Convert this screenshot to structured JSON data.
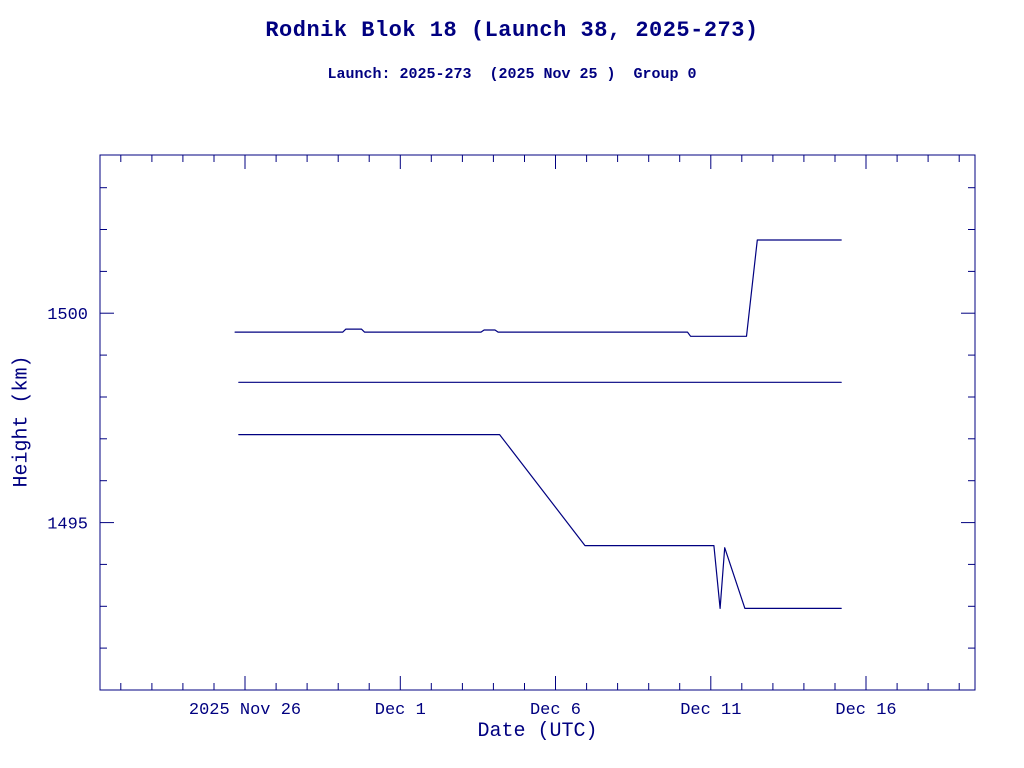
{
  "page": {
    "title": "Rodnik Blok 18 (Launch 38, 2025-273)",
    "subtitle": "Launch: 2025-273  (2025 Nov 25 )  Group 0"
  },
  "colors": {
    "ink": "#000080",
    "background": "#ffffff"
  },
  "chart_data": {
    "type": "line",
    "title": "Rodnik Blok 18 (Launch 38, 2025-273)",
    "subtitle": "Launch: 2025-273  (2025 Nov 25 )  Group 0",
    "xlabel": "Date (UTC)",
    "ylabel": "Height (km)",
    "x_unit": "days since 2025 Nov 25 00:00 UTC",
    "xlim": [
      -3.67,
      24.51
    ],
    "ylim": [
      1491.0,
      1503.78
    ],
    "grid": false,
    "legend": null,
    "line_color": "#000080",
    "x_major_ticks": [
      {
        "value": 1,
        "label": "2025 Nov 26"
      },
      {
        "value": 6,
        "label": "Dec 1"
      },
      {
        "value": 11,
        "label": "Dec 6"
      },
      {
        "value": 16,
        "label": "Dec 11"
      },
      {
        "value": 21,
        "label": "Dec 16"
      }
    ],
    "x_minor_step": 1,
    "y_major_ticks": [
      {
        "value": 1495,
        "label": "1495"
      },
      {
        "value": 1500,
        "label": "1500"
      }
    ],
    "y_minor_step": 1,
    "series": [
      {
        "name": "object-1-upper",
        "points": [
          [
            0.68,
            1499.55
          ],
          [
            4.15,
            1499.55
          ],
          [
            4.25,
            1499.62
          ],
          [
            4.75,
            1499.62
          ],
          [
            4.85,
            1499.55
          ],
          [
            8.6,
            1499.55
          ],
          [
            8.7,
            1499.6
          ],
          [
            9.05,
            1499.6
          ],
          [
            9.15,
            1499.55
          ],
          [
            15.25,
            1499.55
          ],
          [
            15.35,
            1499.45
          ],
          [
            17.15,
            1499.45
          ],
          [
            17.5,
            1501.75
          ],
          [
            20.2,
            1501.75
          ]
        ]
      },
      {
        "name": "object-2-middle",
        "points": [
          [
            0.8,
            1498.35
          ],
          [
            20.2,
            1498.35
          ]
        ]
      },
      {
        "name": "object-3-lower",
        "points": [
          [
            0.8,
            1497.1
          ],
          [
            9.2,
            1497.1
          ],
          [
            11.95,
            1494.45
          ],
          [
            16.1,
            1494.45
          ],
          [
            16.3,
            1492.95
          ],
          [
            16.45,
            1494.4
          ],
          [
            17.1,
            1492.95
          ],
          [
            20.2,
            1492.95
          ]
        ]
      }
    ]
  }
}
